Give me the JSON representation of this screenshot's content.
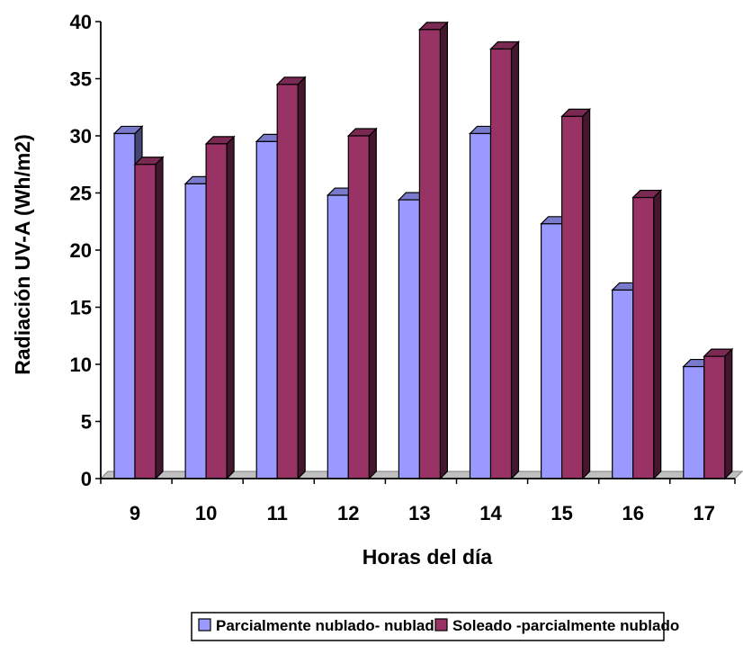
{
  "chart_data": {
    "type": "bar",
    "title": "",
    "xlabel": "Horas del día",
    "ylabel": "Radiación UV-A (Wh/m2)",
    "categories": [
      "9",
      "10",
      "11",
      "12",
      "13",
      "14",
      "15",
      "16",
      "17"
    ],
    "ylim": [
      0,
      40
    ],
    "yticks": [
      0,
      5,
      10,
      15,
      20,
      25,
      30,
      35,
      40
    ],
    "grid": false,
    "legend_position": "bottom",
    "series": [
      {
        "name": "Parcialmente nublado- nublado",
        "color": "#9999ff",
        "values": [
          30.2,
          25.8,
          29.5,
          24.8,
          24.4,
          30.2,
          22.3,
          16.5,
          9.8
        ]
      },
      {
        "name": "Soleado -parcialmente nublado",
        "color": "#993366",
        "values": [
          27.5,
          29.3,
          34.5,
          30.0,
          39.3,
          37.6,
          31.7,
          24.6,
          10.7
        ]
      }
    ]
  }
}
